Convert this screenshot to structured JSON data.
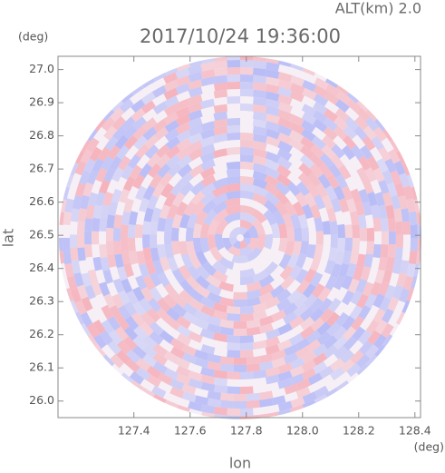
{
  "chart_data": {
    "type": "radar-ppi",
    "title": "2017/10/24 19:36:00",
    "subtitle": "ALT(km) 2.0",
    "x_label": "lon",
    "y_label": "lat",
    "x_unit": "(deg)",
    "y_unit": "(deg)",
    "xlim": [
      127.13,
      128.42
    ],
    "ylim": [
      25.95,
      27.04
    ],
    "xticks": [
      127.4,
      127.6,
      127.8,
      {
        "value": 128,
        "label": "128.0"
      },
      128.2,
      128.4
    ],
    "yticks": [
      {
        "value": 26,
        "label": "26.0"
      },
      26.1,
      26.2,
      26.3,
      26.4,
      26.5,
      26.6,
      26.7,
      26.8,
      26.9,
      {
        "value": 27,
        "label": "27.0"
      }
    ],
    "grid": false
  }
}
